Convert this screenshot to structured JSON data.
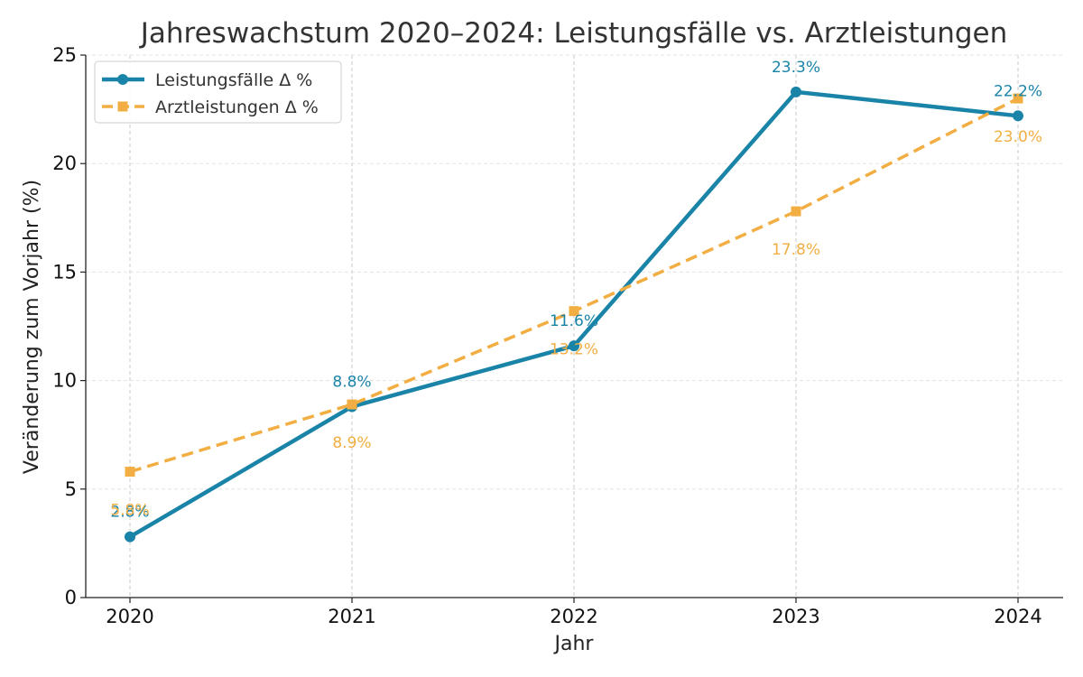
{
  "chart_data": {
    "type": "line",
    "title": "Jahreswachstum 2020–2024: Leistungsfälle vs. Arztleistungen",
    "xlabel": "Jahr",
    "ylabel": "Veränderung zum Vorjahr (%)",
    "categories": [
      "2020",
      "2021",
      "2022",
      "2023",
      "2024"
    ],
    "ylim": [
      0,
      25
    ],
    "yticks": [
      "0",
      "5",
      "10",
      "15",
      "20",
      "25"
    ],
    "grid": true,
    "legend_position": "top-left",
    "series": [
      {
        "name": "Leistungsfälle Δ %",
        "values": [
          2.8,
          8.8,
          11.6,
          23.3,
          22.2
        ],
        "labels": [
          "2.8%",
          "8.8%",
          "11.6%",
          "23.3%",
          "22.2%"
        ],
        "color": "#1a84a8",
        "style": "solid",
        "marker": "circle"
      },
      {
        "name": "Arztleistungen Δ %",
        "values": [
          5.8,
          8.9,
          13.2,
          17.8,
          23.0
        ],
        "labels": [
          "5.8%",
          "8.9%",
          "13.2%",
          "17.8%",
          "23.0%"
        ],
        "color": "#f2ae42",
        "style": "dashed",
        "marker": "square"
      }
    ]
  }
}
